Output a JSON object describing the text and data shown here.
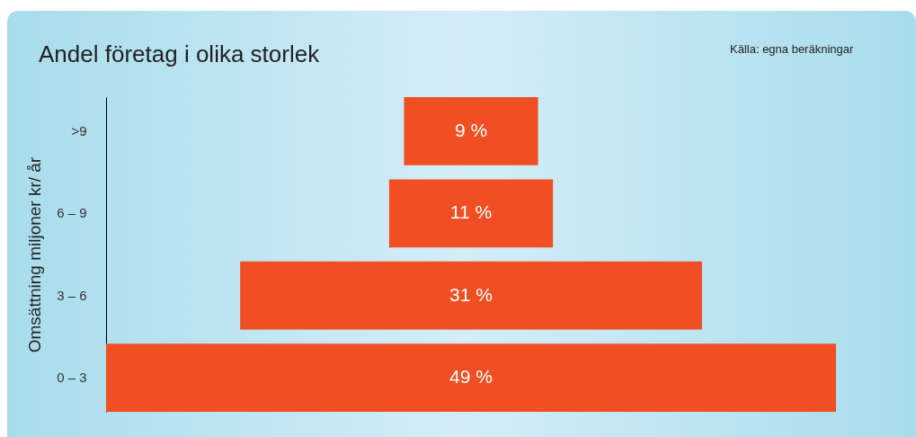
{
  "chart_data": {
    "type": "other",
    "title": "Andel företag i olika storlek",
    "ylabel": "Omsättning miljoner kr/ år",
    "annotations": [
      "Källa: egna beräkningar"
    ],
    "categories": [
      ">9",
      "6 – 9",
      "3 – 6",
      "0 – 3"
    ],
    "values": [
      9,
      11,
      31,
      49
    ],
    "value_labels": [
      "9 %",
      "11 %",
      "31 %",
      "49 %"
    ],
    "color": "#f04e23"
  }
}
